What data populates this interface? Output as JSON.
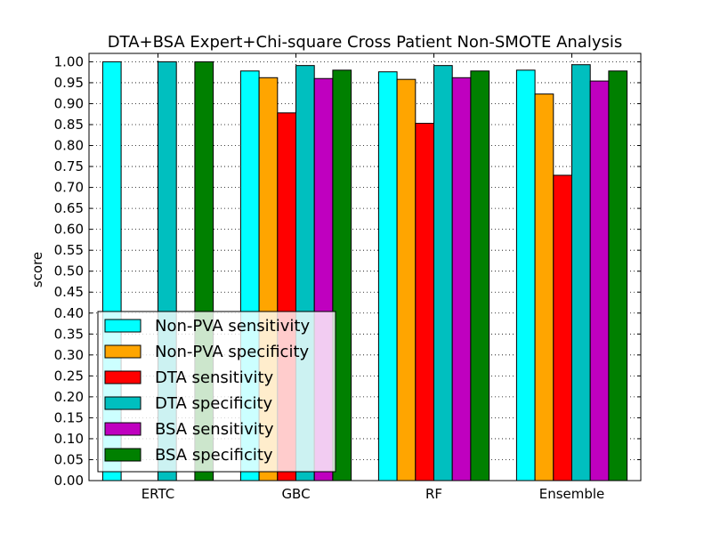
{
  "chart_data": {
    "type": "bar",
    "title": "DTA+BSA Expert+Chi-square Cross Patient Non-SMOTE Analysis",
    "xlabel": "",
    "ylabel": "score",
    "ylim": [
      0.0,
      1.02
    ],
    "yticks": [
      "0.00",
      "0.05",
      "0.10",
      "0.15",
      "0.20",
      "0.25",
      "0.30",
      "0.35",
      "0.40",
      "0.45",
      "0.50",
      "0.55",
      "0.60",
      "0.65",
      "0.70",
      "0.75",
      "0.80",
      "0.85",
      "0.90",
      "0.95",
      "1.00"
    ],
    "grid": "on",
    "legend_position": "lower-left",
    "categories": [
      "ERTC",
      "GBC",
      "RF",
      "Ensemble"
    ],
    "series": [
      {
        "name": "Non-PVA sensitivity",
        "color": "#00ffff",
        "values": [
          1.0,
          0.978,
          0.976,
          0.98
        ]
      },
      {
        "name": "Non-PVA specificity",
        "color": "#ffa500",
        "values": [
          0.0,
          0.962,
          0.958,
          0.923
        ]
      },
      {
        "name": "DTA sensitivity",
        "color": "#ff0000",
        "values": [
          0.0,
          0.878,
          0.853,
          0.729
        ]
      },
      {
        "name": "DTA specificity",
        "color": "#00bfbf",
        "values": [
          1.0,
          0.991,
          0.991,
          0.993
        ]
      },
      {
        "name": "BSA sensitivity",
        "color": "#bf00bf",
        "values": [
          0.0,
          0.96,
          0.962,
          0.954
        ]
      },
      {
        "name": "BSA specificity",
        "color": "#008000",
        "values": [
          1.0,
          0.98,
          0.978,
          0.978
        ]
      }
    ]
  }
}
